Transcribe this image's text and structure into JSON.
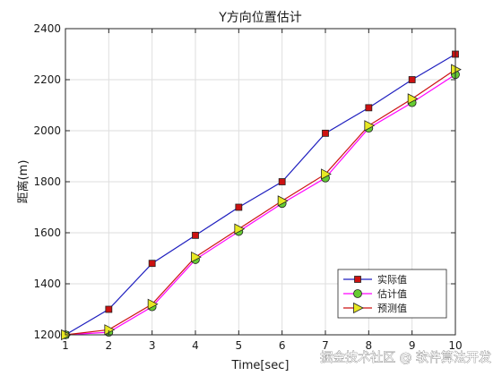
{
  "chart_data": {
    "type": "line",
    "title": "Y方向位置估计",
    "xlabel": "Time[sec]",
    "ylabel": "距离(m)",
    "xlim": [
      1,
      10
    ],
    "ylim": [
      1200,
      2400
    ],
    "xticks": [
      1,
      2,
      3,
      4,
      5,
      6,
      7,
      8,
      9,
      10
    ],
    "yticks": [
      1200,
      1400,
      1600,
      1800,
      2000,
      2200,
      2400
    ],
    "grid": true,
    "legend_position": "bottom-right",
    "x": [
      1,
      2,
      3,
      4,
      5,
      6,
      7,
      8,
      9,
      10
    ],
    "series": [
      {
        "name": "实际值",
        "values": [
          1200,
          1300,
          1480,
          1590,
          1700,
          1800,
          1990,
          2090,
          2200,
          2300
        ],
        "line_color": "#1f1fbf",
        "marker": "square",
        "marker_color": "#cc1111"
      },
      {
        "name": "估计值",
        "values": [
          1200,
          1210,
          1310,
          1495,
          1605,
          1715,
          1815,
          2010,
          2110,
          2220
        ],
        "line_color": "#ff00ff",
        "marker": "circle",
        "marker_color": "#66cc33"
      },
      {
        "name": "预测值",
        "values": [
          1200,
          1220,
          1320,
          1505,
          1615,
          1725,
          1830,
          2020,
          2125,
          2240
        ],
        "line_color": "#cc1111",
        "marker": "triangle-right",
        "marker_color": "#e8e822"
      }
    ]
  },
  "watermark": "掘金技术社区 @ 软件算法开发"
}
